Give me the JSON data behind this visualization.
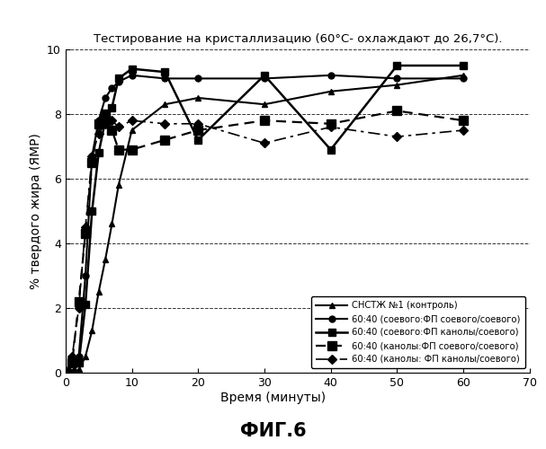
{
  "title": "Тестирование на кристаллизацию (60°С- охлаждают до 26,7°С).",
  "xlabel": "Время (минуты)",
  "ylabel": "% твердого жира (ЯМР)",
  "figcaption": "ФИГ.6",
  "xlim": [
    0,
    70
  ],
  "ylim": [
    0,
    10
  ],
  "xticks": [
    0,
    10,
    20,
    30,
    40,
    50,
    60,
    70
  ],
  "yticks": [
    0,
    2,
    4,
    6,
    8,
    10
  ],
  "grid_y": [
    2,
    4,
    6,
    8,
    10
  ],
  "series": [
    {
      "label": "СНСТЖ №1 (контроль)",
      "linestyle": "-",
      "marker": "^",
      "markersize": 5,
      "linewidth": 1.5,
      "color": "#000000",
      "dash_style": null,
      "x": [
        0,
        1,
        2,
        3,
        4,
        5,
        6,
        7,
        8,
        10,
        15,
        20,
        30,
        40,
        50,
        60
      ],
      "y": [
        0,
        0.0,
        0.1,
        0.5,
        1.3,
        2.5,
        3.5,
        4.6,
        5.8,
        7.5,
        8.3,
        8.5,
        8.3,
        8.7,
        8.9,
        9.2
      ]
    },
    {
      "label": "60:40 (соевого:ФП соевого/соевого)",
      "linestyle": "-",
      "marker": "o",
      "markersize": 5,
      "linewidth": 1.5,
      "color": "#000000",
      "dash_style": null,
      "x": [
        0,
        1,
        2,
        3,
        4,
        5,
        6,
        7,
        8,
        10,
        15,
        20,
        30,
        40,
        50,
        60
      ],
      "y": [
        0,
        0.0,
        0.5,
        3.0,
        6.7,
        7.8,
        8.5,
        8.8,
        9.0,
        9.2,
        9.1,
        9.1,
        9.1,
        9.2,
        9.1,
        9.1
      ]
    },
    {
      "label": "60:40 (соевого:ФП канолы/соевого)",
      "linestyle": "-",
      "marker": "s",
      "markersize": 6,
      "linewidth": 1.8,
      "color": "#000000",
      "dash_style": null,
      "x": [
        0,
        1,
        2,
        3,
        4,
        5,
        6,
        7,
        8,
        10,
        15,
        20,
        30,
        40,
        50,
        60
      ],
      "y": [
        0,
        0.0,
        0.3,
        2.1,
        5.0,
        6.8,
        7.8,
        8.2,
        9.1,
        9.4,
        9.3,
        7.2,
        9.2,
        6.9,
        9.5,
        9.5
      ]
    },
    {
      "label": "60:40 (канолы:ФП соевого/соевого)",
      "linestyle": "--",
      "marker": "s",
      "markersize": 7,
      "linewidth": 1.6,
      "color": "#000000",
      "dash_style": [
        5,
        3
      ],
      "x": [
        0,
        1,
        2,
        3,
        4,
        5,
        6,
        7,
        8,
        10,
        15,
        20,
        30,
        40,
        50,
        60
      ],
      "y": [
        0,
        0.3,
        2.2,
        4.3,
        6.5,
        7.7,
        8.0,
        7.5,
        6.9,
        6.9,
        7.2,
        7.5,
        7.8,
        7.7,
        8.1,
        7.8
      ]
    },
    {
      "label": "60:40 (канолы: ФП канолы/соевого)",
      "linestyle": "--",
      "marker": "D",
      "markersize": 5,
      "linewidth": 1.2,
      "color": "#000000",
      "dash_style": [
        8,
        3,
        2,
        3
      ],
      "x": [
        0,
        1,
        2,
        3,
        4,
        5,
        6,
        7,
        8,
        10,
        15,
        20,
        30,
        40,
        50,
        60
      ],
      "y": [
        0,
        0.5,
        2.0,
        4.5,
        6.7,
        7.4,
        7.7,
        7.8,
        7.6,
        7.8,
        7.7,
        7.7,
        7.1,
        7.6,
        7.3,
        7.5
      ]
    }
  ]
}
